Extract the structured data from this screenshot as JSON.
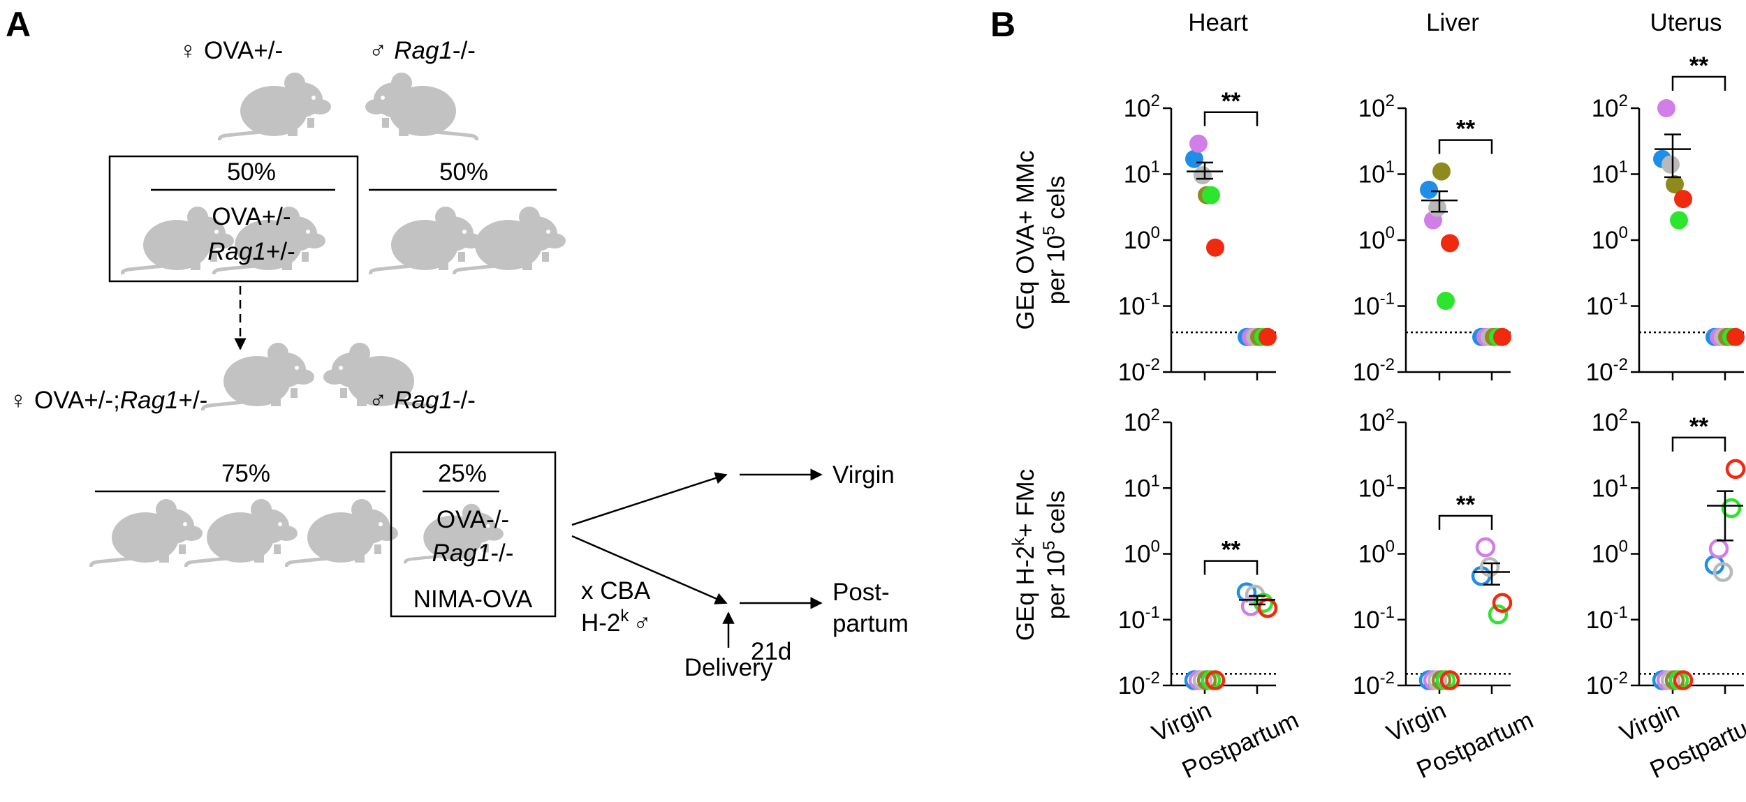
{
  "diagram": {
    "label": "A",
    "parent_female": "♀ OVA+/-",
    "parent_male": [
      "♂",
      "Rag1",
      "-/-"
    ],
    "f1_selected_percent": "50%",
    "f1_selected_genotype": [
      "OVA+/-",
      "Rag1",
      "+/-"
    ],
    "f1_other_percent": "50%",
    "f2_female": [
      "♀ OVA+/-;",
      "Rag1",
      "+/-"
    ],
    "f2_male": [
      "♂",
      "Rag1",
      "-/-"
    ],
    "f2_other_percent": "75%",
    "f2_selected_percent": "25%",
    "f2_selected_genotype": [
      "OVA-/-",
      "Rag1",
      "-/-"
    ],
    "f2_selected_name": "NIMA-OVA",
    "cross": [
      "x CBA",
      "H-2",
      "k",
      "♂"
    ],
    "outcome_virgin": "Virgin",
    "outcome_postpartum": [
      "Post-",
      "partum"
    ],
    "interval": "21d",
    "delivery": "Delivery"
  },
  "panel_b_label": "B",
  "chart_data": [
    {
      "type": "scatter",
      "title": "Heart",
      "ylabel": [
        [
          "GEq OVA+ MMc"
        ],
        [
          "per 10",
          "5",
          " cels"
        ]
      ],
      "yscale": "log",
      "marker": "filled",
      "ylim": [
        0.01,
        100
      ],
      "yticks": [
        {
          "value": 100,
          "label": "10",
          "exponent": "2"
        },
        {
          "value": 10,
          "label": "10",
          "exponent": "1"
        },
        {
          "value": 1,
          "label": "10",
          "exponent": "0"
        },
        {
          "value": 0.1,
          "label": "10",
          "exponent": "-1"
        },
        {
          "value": 0.01,
          "label": "10",
          "exponent": "-2"
        }
      ],
      "detection_limit": 0.04,
      "annotation": "**",
      "series": [
        {
          "color": "#1e8fe8",
          "values": [
            17,
            0.034
          ]
        },
        {
          "color": "#d27ee8",
          "values": [
            29,
            0.034
          ]
        },
        {
          "color": "#b9b9b9",
          "values": [
            9.6,
            0.034
          ]
        },
        {
          "color": "#8f8a1e",
          "values": [
            4.8,
            0.034
          ]
        },
        {
          "color": "#2ee52e",
          "values": [
            4.8,
            0.034
          ]
        },
        {
          "color": "#ef2a0f",
          "values": [
            0.77,
            0.034
          ]
        }
      ],
      "mean": [
        11,
        null
      ],
      "error_low": [
        8.5,
        null
      ],
      "error_high": [
        15,
        null
      ]
    },
    {
      "type": "scatter",
      "title": "Liver",
      "yscale": "log",
      "marker": "filled",
      "ylim": [
        0.01,
        100
      ],
      "yticks": [
        {
          "value": 100,
          "label": "10",
          "exponent": "2"
        },
        {
          "value": 10,
          "label": "10",
          "exponent": "1"
        },
        {
          "value": 1,
          "label": "10",
          "exponent": "0"
        },
        {
          "value": 0.1,
          "label": "10",
          "exponent": "-1"
        },
        {
          "value": 0.01,
          "label": "10",
          "exponent": "-2"
        }
      ],
      "detection_limit": 0.04,
      "annotation": "**",
      "series": [
        {
          "color": "#1e8fe8",
          "values": [
            5.8,
            0.034
          ]
        },
        {
          "color": "#d27ee8",
          "values": [
            2,
            0.034
          ]
        },
        {
          "color": "#b9b9b9",
          "values": [
            3.1,
            0.034
          ]
        },
        {
          "color": "#8f8a1e",
          "values": [
            11,
            0.034
          ]
        },
        {
          "color": "#2ee52e",
          "values": [
            0.12,
            0.034
          ]
        },
        {
          "color": "#ef2a0f",
          "values": [
            0.9,
            0.034
          ]
        }
      ],
      "mean": [
        4,
        null
      ],
      "error_low": [
        2.7,
        null
      ],
      "error_high": [
        5.5,
        null
      ]
    },
    {
      "type": "scatter",
      "title": "Uterus",
      "yscale": "log",
      "marker": "filled",
      "ylim": [
        0.01,
        100
      ],
      "yticks": [
        {
          "value": 100,
          "label": "10",
          "exponent": "2"
        },
        {
          "value": 10,
          "label": "10",
          "exponent": "1"
        },
        {
          "value": 1,
          "label": "10",
          "exponent": "0"
        },
        {
          "value": 0.1,
          "label": "10",
          "exponent": "-1"
        },
        {
          "value": 0.01,
          "label": "10",
          "exponent": "-2"
        }
      ],
      "detection_limit": 0.04,
      "annotation": "**",
      "series": [
        {
          "color": "#1e8fe8",
          "values": [
            17,
            0.034
          ]
        },
        {
          "color": "#d27ee8",
          "values": [
            100,
            0.034
          ]
        },
        {
          "color": "#b9b9b9",
          "values": [
            14,
            0.034
          ]
        },
        {
          "color": "#8f8a1e",
          "values": [
            7,
            0.034
          ]
        },
        {
          "color": "#2ee52e",
          "values": [
            2,
            0.034
          ]
        },
        {
          "color": "#ef2a0f",
          "values": [
            4.2,
            0.034
          ]
        }
      ],
      "mean": [
        24,
        null
      ],
      "error_low": [
        9,
        null
      ],
      "error_high": [
        40,
        null
      ]
    },
    {
      "type": "scatter",
      "ylabel": [
        [
          "GEq H-2",
          "k",
          "+ FMc"
        ],
        [
          "per 10",
          "5",
          " cels"
        ]
      ],
      "yscale": "log",
      "marker": "open",
      "categories": [
        "Virgin",
        "Postpartum"
      ],
      "ylim": [
        0.01,
        100
      ],
      "yticks": [
        {
          "value": 100,
          "label": "10",
          "exponent": "2"
        },
        {
          "value": 10,
          "label": "10",
          "exponent": "1"
        },
        {
          "value": 1,
          "label": "10",
          "exponent": "0"
        },
        {
          "value": 0.1,
          "label": "10",
          "exponent": "-1"
        },
        {
          "value": 0.01,
          "label": "10",
          "exponent": "-2"
        }
      ],
      "detection_limit": 0.015,
      "annotation": "**",
      "series": [
        {
          "color": "#1e8fe8",
          "values": [
            0.012,
            0.26
          ]
        },
        {
          "color": "#d27ee8",
          "values": [
            0.012,
            0.16
          ]
        },
        {
          "color": "#b9b9b9",
          "values": [
            0.012,
            0.24
          ]
        },
        {
          "color": "#8f8a1e",
          "values": [
            0.012,
            null
          ]
        },
        {
          "color": "#2ee52e",
          "values": [
            0.012,
            0.18
          ]
        },
        {
          "color": "#ef2a0f",
          "values": [
            0.012,
            0.15
          ]
        }
      ],
      "mean": [
        null,
        0.2
      ],
      "error_low": [
        null,
        0.17
      ],
      "error_high": [
        null,
        0.23
      ]
    },
    {
      "type": "scatter",
      "yscale": "log",
      "marker": "open",
      "categories": [
        "Virgin",
        "Postpartum"
      ],
      "ylim": [
        0.01,
        100
      ],
      "yticks": [
        {
          "value": 100,
          "label": "10",
          "exponent": "2"
        },
        {
          "value": 10,
          "label": "10",
          "exponent": "1"
        },
        {
          "value": 1,
          "label": "10",
          "exponent": "0"
        },
        {
          "value": 0.1,
          "label": "10",
          "exponent": "-1"
        },
        {
          "value": 0.01,
          "label": "10",
          "exponent": "-2"
        }
      ],
      "detection_limit": 0.015,
      "annotation": "**",
      "series": [
        {
          "color": "#1e8fe8",
          "values": [
            0.012,
            0.46
          ]
        },
        {
          "color": "#d27ee8",
          "values": [
            0.012,
            1.26
          ]
        },
        {
          "color": "#b9b9b9",
          "values": [
            0.012,
            0.63
          ]
        },
        {
          "color": "#8f8a1e",
          "values": [
            0.012,
            null
          ]
        },
        {
          "color": "#2ee52e",
          "values": [
            0.012,
            0.12
          ]
        },
        {
          "color": "#ef2a0f",
          "values": [
            0.012,
            0.18
          ]
        }
      ],
      "mean": [
        null,
        0.53
      ],
      "error_low": [
        null,
        0.34
      ],
      "error_high": [
        null,
        0.72
      ]
    },
    {
      "type": "scatter",
      "yscale": "log",
      "marker": "open",
      "categories": [
        "Virgin",
        "Postpartum"
      ],
      "ylim": [
        0.01,
        100
      ],
      "yticks": [
        {
          "value": 100,
          "label": "10",
          "exponent": "2"
        },
        {
          "value": 10,
          "label": "10",
          "exponent": "1"
        },
        {
          "value": 1,
          "label": "10",
          "exponent": "0"
        },
        {
          "value": 0.1,
          "label": "10",
          "exponent": "-1"
        },
        {
          "value": 0.01,
          "label": "10",
          "exponent": "-2"
        }
      ],
      "detection_limit": 0.015,
      "annotation": "**",
      "series": [
        {
          "color": "#1e8fe8",
          "values": [
            0.012,
            0.68
          ]
        },
        {
          "color": "#d27ee8",
          "values": [
            0.012,
            1.2
          ]
        },
        {
          "color": "#b9b9b9",
          "values": [
            0.012,
            0.53
          ]
        },
        {
          "color": "#8f8a1e",
          "values": [
            0.012,
            null
          ]
        },
        {
          "color": "#2ee52e",
          "values": [
            0.012,
            4.95
          ]
        },
        {
          "color": "#ef2a0f",
          "values": [
            0.012,
            19.5
          ]
        }
      ],
      "mean": [
        null,
        5.4
      ],
      "error_low": [
        null,
        1.6
      ],
      "error_high": [
        null,
        9
      ]
    }
  ]
}
